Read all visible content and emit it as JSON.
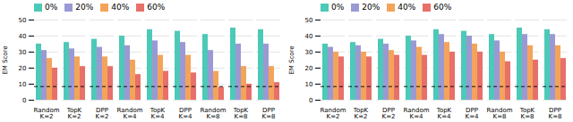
{
  "chart_data": [
    {
      "type": "bar",
      "ylabel": "EM Score",
      "categories": [
        "Random\nK=2",
        "TopK\nK=2",
        "DPP\nK=2",
        "Random\nK=4",
        "TopK\nK=4",
        "DPP\nK=4",
        "Random\nK=8",
        "TopK\nK=8",
        "DPP\nK=8"
      ],
      "series": [
        {
          "name": "0%",
          "color": "#4dc9b8",
          "values": [
            35,
            36,
            38,
            40,
            44,
            43,
            41,
            45,
            44
          ]
        },
        {
          "name": "20%",
          "color": "#9b99d4",
          "values": [
            31,
            32,
            33,
            34,
            37,
            36,
            31,
            35,
            35
          ]
        },
        {
          "name": "40%",
          "color": "#f4a45a",
          "values": [
            26,
            27,
            27,
            25,
            28,
            28,
            18,
            21,
            21
          ]
        },
        {
          "name": "60%",
          "color": "#e8706a",
          "values": [
            20,
            21,
            21,
            16,
            18,
            17,
            8,
            10,
            11
          ]
        }
      ],
      "reference_line": 8.5,
      "ylim": [
        0,
        50
      ],
      "yticks": [
        0,
        10,
        20,
        30,
        40,
        50
      ],
      "grid": true,
      "legend": "upper left"
    },
    {
      "type": "bar",
      "ylabel": "EM Score",
      "categories": [
        "Random\nK=2",
        "TopK\nK=2",
        "DPP\nK=2",
        "Random\nK=4",
        "TopK\nK=4",
        "DPP\nK=4",
        "Random\nK=8",
        "TopK\nK=8",
        "DPP\nK=8"
      ],
      "series": [
        {
          "name": "0%",
          "color": "#4dc9b8",
          "values": [
            35,
            36,
            38,
            40,
            44,
            43,
            41,
            45,
            44
          ]
        },
        {
          "name": "20%",
          "color": "#9b99d4",
          "values": [
            33,
            34,
            35,
            37,
            41,
            40,
            37,
            41,
            41
          ]
        },
        {
          "name": "40%",
          "color": "#f4a45a",
          "values": [
            30,
            30,
            31,
            33,
            36,
            35,
            30,
            34,
            34
          ]
        },
        {
          "name": "60%",
          "color": "#e8706a",
          "values": [
            27,
            27,
            28,
            28,
            30,
            30,
            24,
            25,
            26
          ]
        }
      ],
      "reference_line": 8.5,
      "ylim": [
        0,
        50
      ],
      "yticks": [
        0,
        10,
        20,
        30,
        40,
        50
      ],
      "grid": true,
      "legend": "upper left"
    }
  ]
}
